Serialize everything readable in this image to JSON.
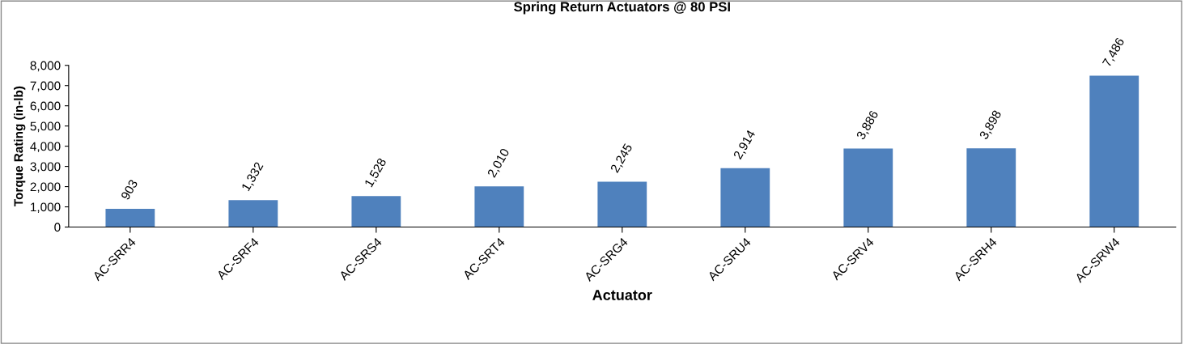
{
  "chart_data": {
    "type": "bar",
    "title": "Spring Return Actuators @ 80 PSI",
    "xlabel": "Actuator",
    "ylabel": "Torque Rating (in-lb)",
    "categories": [
      "AC-SRR4",
      "AC-SRF4",
      "AC-SRS4",
      "AC-SRT4",
      "AC-SRG4",
      "AC-SRU4",
      "AC-SRV4",
      "AC-SRH4",
      "AC-SRW4"
    ],
    "values": [
      903,
      1332,
      1528,
      2010,
      2245,
      2914,
      3886,
      3898,
      7486
    ],
    "value_labels": [
      "903",
      "1,332",
      "1,528",
      "2,010",
      "2,245",
      "2,914",
      "3,886",
      "3,898",
      "7,486"
    ],
    "color": "#4f81bd",
    "ylim": [
      0,
      8000
    ],
    "yticks": [
      0,
      {
        "value": 1000,
        "label": "1,000"
      },
      {
        "value": 2000,
        "label": "2,000"
      },
      {
        "value": 3000,
        "label": "3,000"
      },
      {
        "value": 4000,
        "label": "4,000"
      },
      {
        "value": 5000,
        "label": "5,000"
      },
      {
        "value": 6000,
        "label": "6,000"
      },
      {
        "value": 7000,
        "label": "7,000"
      },
      {
        "value": 8000,
        "label": "8,000"
      }
    ],
    "grid": false,
    "legend": false
  }
}
